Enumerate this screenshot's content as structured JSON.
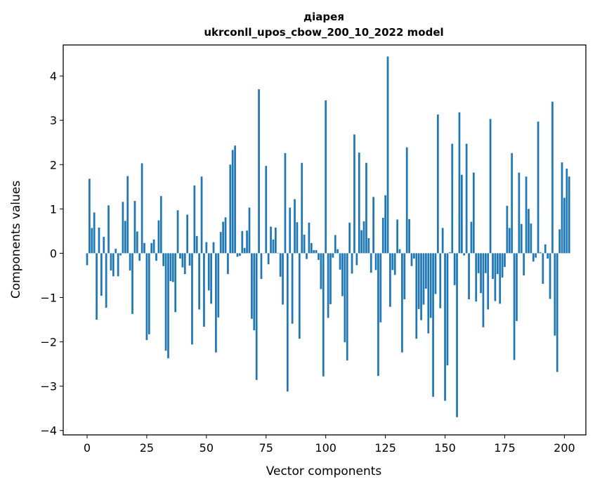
{
  "chart_data": {
    "type": "bar",
    "title_line1": "діарея",
    "title_line2": "ukrconll_upos_cbow_200_10_2022 model",
    "xlabel": "Vector components",
    "ylabel": "Components values",
    "xlim": [
      -10,
      209
    ],
    "ylim": [
      -4.1,
      4.7
    ],
    "xticks": [
      0,
      25,
      50,
      75,
      100,
      125,
      150,
      175,
      200
    ],
    "xtick_labels": [
      "0",
      "25",
      "50",
      "75",
      "100",
      "125",
      "150",
      "175",
      "200"
    ],
    "yticks": [
      -4,
      -3,
      -2,
      -1,
      0,
      1,
      2,
      3,
      4
    ],
    "ytick_labels": [
      "−4",
      "−3",
      "−2",
      "−1",
      "0",
      "1",
      "2",
      "3",
      "4"
    ],
    "bar_color": "#1f77b4",
    "values": [
      -0.27,
      1.68,
      0.57,
      0.92,
      -1.5,
      0.58,
      -0.96,
      0.37,
      -1.23,
      1.08,
      -0.39,
      -0.52,
      0.1,
      -0.52,
      -0.05,
      1.16,
      0.73,
      1.74,
      -0.39,
      -1.37,
      1.18,
      0.49,
      -0.17,
      2.03,
      0.23,
      -1.96,
      -1.83,
      0.23,
      0.31,
      -0.17,
      0.74,
      1.29,
      -0.29,
      -2.2,
      -2.37,
      -0.63,
      -0.65,
      -1.33,
      0.97,
      -0.12,
      -0.32,
      -0.47,
      0.87,
      -0.28,
      -2.06,
      1.53,
      0.39,
      -1.27,
      1.73,
      -1.66,
      0.25,
      -0.84,
      -1.14,
      0.25,
      -2.24,
      -1.45,
      0.48,
      0.71,
      0.81,
      -0.47,
      2.0,
      2.33,
      2.43,
      -0.08,
      -0.06,
      0.5,
      0.12,
      0.51,
      1.03,
      -1.48,
      -1.74,
      -2.86,
      3.7,
      -0.58,
      0.0,
      1.97,
      -0.25,
      0.6,
      0.31,
      0.58,
      0.01,
      -0.53,
      -1.16,
      2.26,
      -3.12,
      1.03,
      -1.59,
      1.22,
      0.7,
      -1.93,
      2.04,
      0.42,
      -0.13,
      0.69,
      0.23,
      0.07,
      0.07,
      -0.15,
      -0.81,
      -2.78,
      3.45,
      -1.46,
      -1.15,
      -0.1,
      0.41,
      0.09,
      -0.37,
      -0.97,
      -2.01,
      -2.42,
      0.69,
      -0.46,
      2.68,
      -0.27,
      2.27,
      0.52,
      0.72,
      2.04,
      0.34,
      -0.44,
      1.27,
      -0.38,
      -2.77,
      -1.56,
      0.8,
      1.31,
      4.44,
      -1.21,
      -0.38,
      -0.49,
      0.76,
      0.09,
      -2.24,
      -1.04,
      2.39,
      0.77,
      -0.29,
      -0.12,
      -1.93,
      -1.26,
      -1.51,
      -1.16,
      -0.8,
      -1.81,
      -1.46,
      -3.24,
      -0.92,
      3.13,
      -1.24,
      0.57,
      -3.33,
      -2.53,
      0.02,
      2.47,
      -0.72,
      -3.7,
      3.18,
      1.77,
      -0.05,
      2.47,
      -1.04,
      0.71,
      1.82,
      -1.09,
      -0.45,
      -0.9,
      -1.67,
      -0.45,
      -1.27,
      3.03,
      -0.58,
      -1.08,
      -0.47,
      -1.14,
      -0.55,
      -0.31,
      1.07,
      0.57,
      2.26,
      -2.41,
      -1.53,
      1.82,
      0.66,
      -0.5,
      1.73,
      1.0,
      0.67,
      -0.19,
      -0.1,
      2.97,
      0.02,
      -0.69,
      0.2,
      -0.12,
      -1.03,
      3.42,
      -1.86,
      -2.68,
      0.54,
      2.05,
      1.25,
      1.91,
      1.73
    ]
  }
}
